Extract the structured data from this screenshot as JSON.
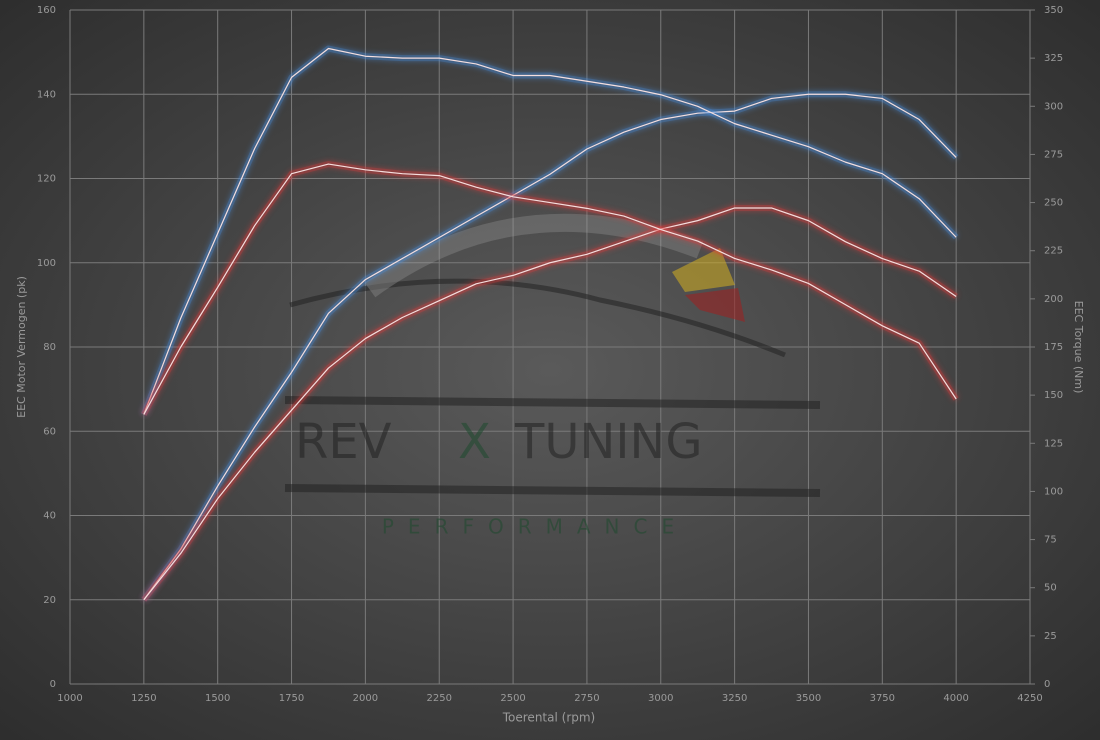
{
  "chart_data": {
    "type": "line",
    "x_label": "Toerental (rpm)",
    "y_label": "EEC Motor Vermogen (pk)",
    "y2_label": "EEC Torque (Nm)",
    "watermark": [
      "REV",
      "X",
      "TUNING",
      "PERFORMANCE"
    ],
    "x": [
      1250,
      1375,
      1500,
      1625,
      1750,
      1875,
      2000,
      2125,
      2250,
      2375,
      2500,
      2625,
      2750,
      2875,
      3000,
      3125,
      3250,
      3375,
      3500,
      3625,
      3750,
      3875,
      4000
    ],
    "series": [
      {
        "color": "#4a90e2",
        "values": [
          20,
          32,
          47,
          61,
          74,
          88,
          96,
          101,
          106,
          111,
          116,
          121,
          127,
          131,
          134,
          135.5,
          136,
          139,
          140,
          140,
          139,
          134,
          125
        ]
      },
      {
        "color": "#e23a3a",
        "values": [
          20,
          31,
          44,
          55,
          65,
          75,
          82,
          87,
          91,
          95,
          97,
          100,
          102,
          105,
          108,
          110,
          113,
          113,
          110,
          105,
          101,
          98,
          92
        ]
      },
      {
        "color": "#4a90e2",
        "axis": "y2",
        "values": [
          140,
          190,
          234,
          278,
          315,
          330,
          326,
          325,
          325,
          322,
          316,
          316,
          313,
          310,
          306,
          300,
          291,
          285,
          279,
          271,
          265,
          252,
          232
        ]
      },
      {
        "color": "#e23a3a",
        "axis": "y2",
        "values": [
          140,
          175,
          206,
          238,
          265,
          270,
          267,
          265,
          264,
          258,
          253,
          250,
          247,
          243,
          236,
          230,
          221,
          215,
          208,
          197,
          186,
          177,
          148
        ]
      }
    ],
    "xlim": [
      1000,
      4250
    ],
    "xticks": [
      1000,
      1250,
      1500,
      1750,
      2000,
      2250,
      2500,
      2750,
      3000,
      3250,
      3500,
      3750,
      4000,
      4250
    ],
    "ylim": [
      0,
      160
    ],
    "yticks": [
      0,
      20,
      40,
      60,
      80,
      100,
      120,
      140,
      160
    ],
    "y2lim": [
      0,
      350
    ],
    "y2ticks": [
      0,
      25,
      50,
      75,
      100,
      125,
      150,
      175,
      200,
      225,
      250,
      275,
      300,
      325,
      350
    ],
    "grid": true
  }
}
